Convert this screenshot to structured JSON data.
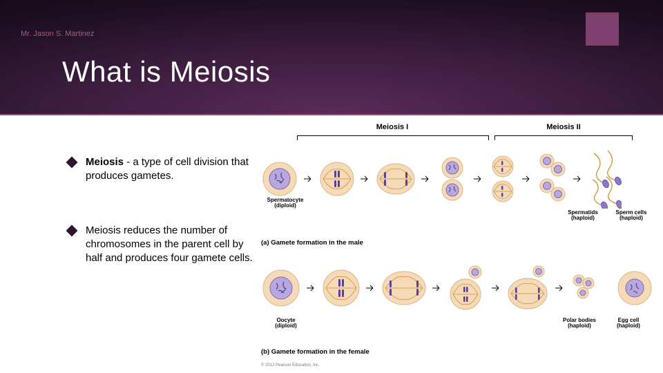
{
  "author": "Mr. Jason S. Martinez",
  "title": "What is Meiosis",
  "accent_color": "#7e3f6f",
  "header_gradient": [
    "#5a2b58",
    "#3b1c3e",
    "#1b0e1f",
    "#0b070d"
  ],
  "bullets": [
    {
      "bold": "Meiosis",
      "text": " - a type of cell division that produces gametes."
    },
    {
      "bold": "",
      "text": "Meiosis reduces the number of chromosomes in the parent cell by half and produces four gamete cells."
    }
  ],
  "diagram": {
    "phase_labels": {
      "m1": "Meiosis I",
      "m2": "Meiosis II"
    },
    "male": {
      "start_label": "Spermatocyte\n(diploid)",
      "spermatids_label": "Spermatids\n(haploid)",
      "sperm_label": "Sperm cells\n(haploid)",
      "caption": "(a) Gamete formation in the male"
    },
    "female": {
      "start_label": "Oocyte\n(diploid)",
      "polar_label": "Polar bodies\n(haploid)",
      "egg_label": "Egg cell\n(haploid)",
      "caption": "(b) Gamete formation in the female"
    },
    "colors": {
      "membrane": "#f6d9b6",
      "membrane_stroke": "#d9b689",
      "nucleus": "#b9a8dc",
      "nucleus_stroke": "#7e6bb8",
      "chromatin": "#5a3e9e",
      "spindle": "#c7943e",
      "sperm_head": "#8f78c8",
      "sperm_tail": "#d09a3a",
      "arrow": "#000000"
    },
    "copyright": "© 2012 Pearson Education, Inc."
  }
}
